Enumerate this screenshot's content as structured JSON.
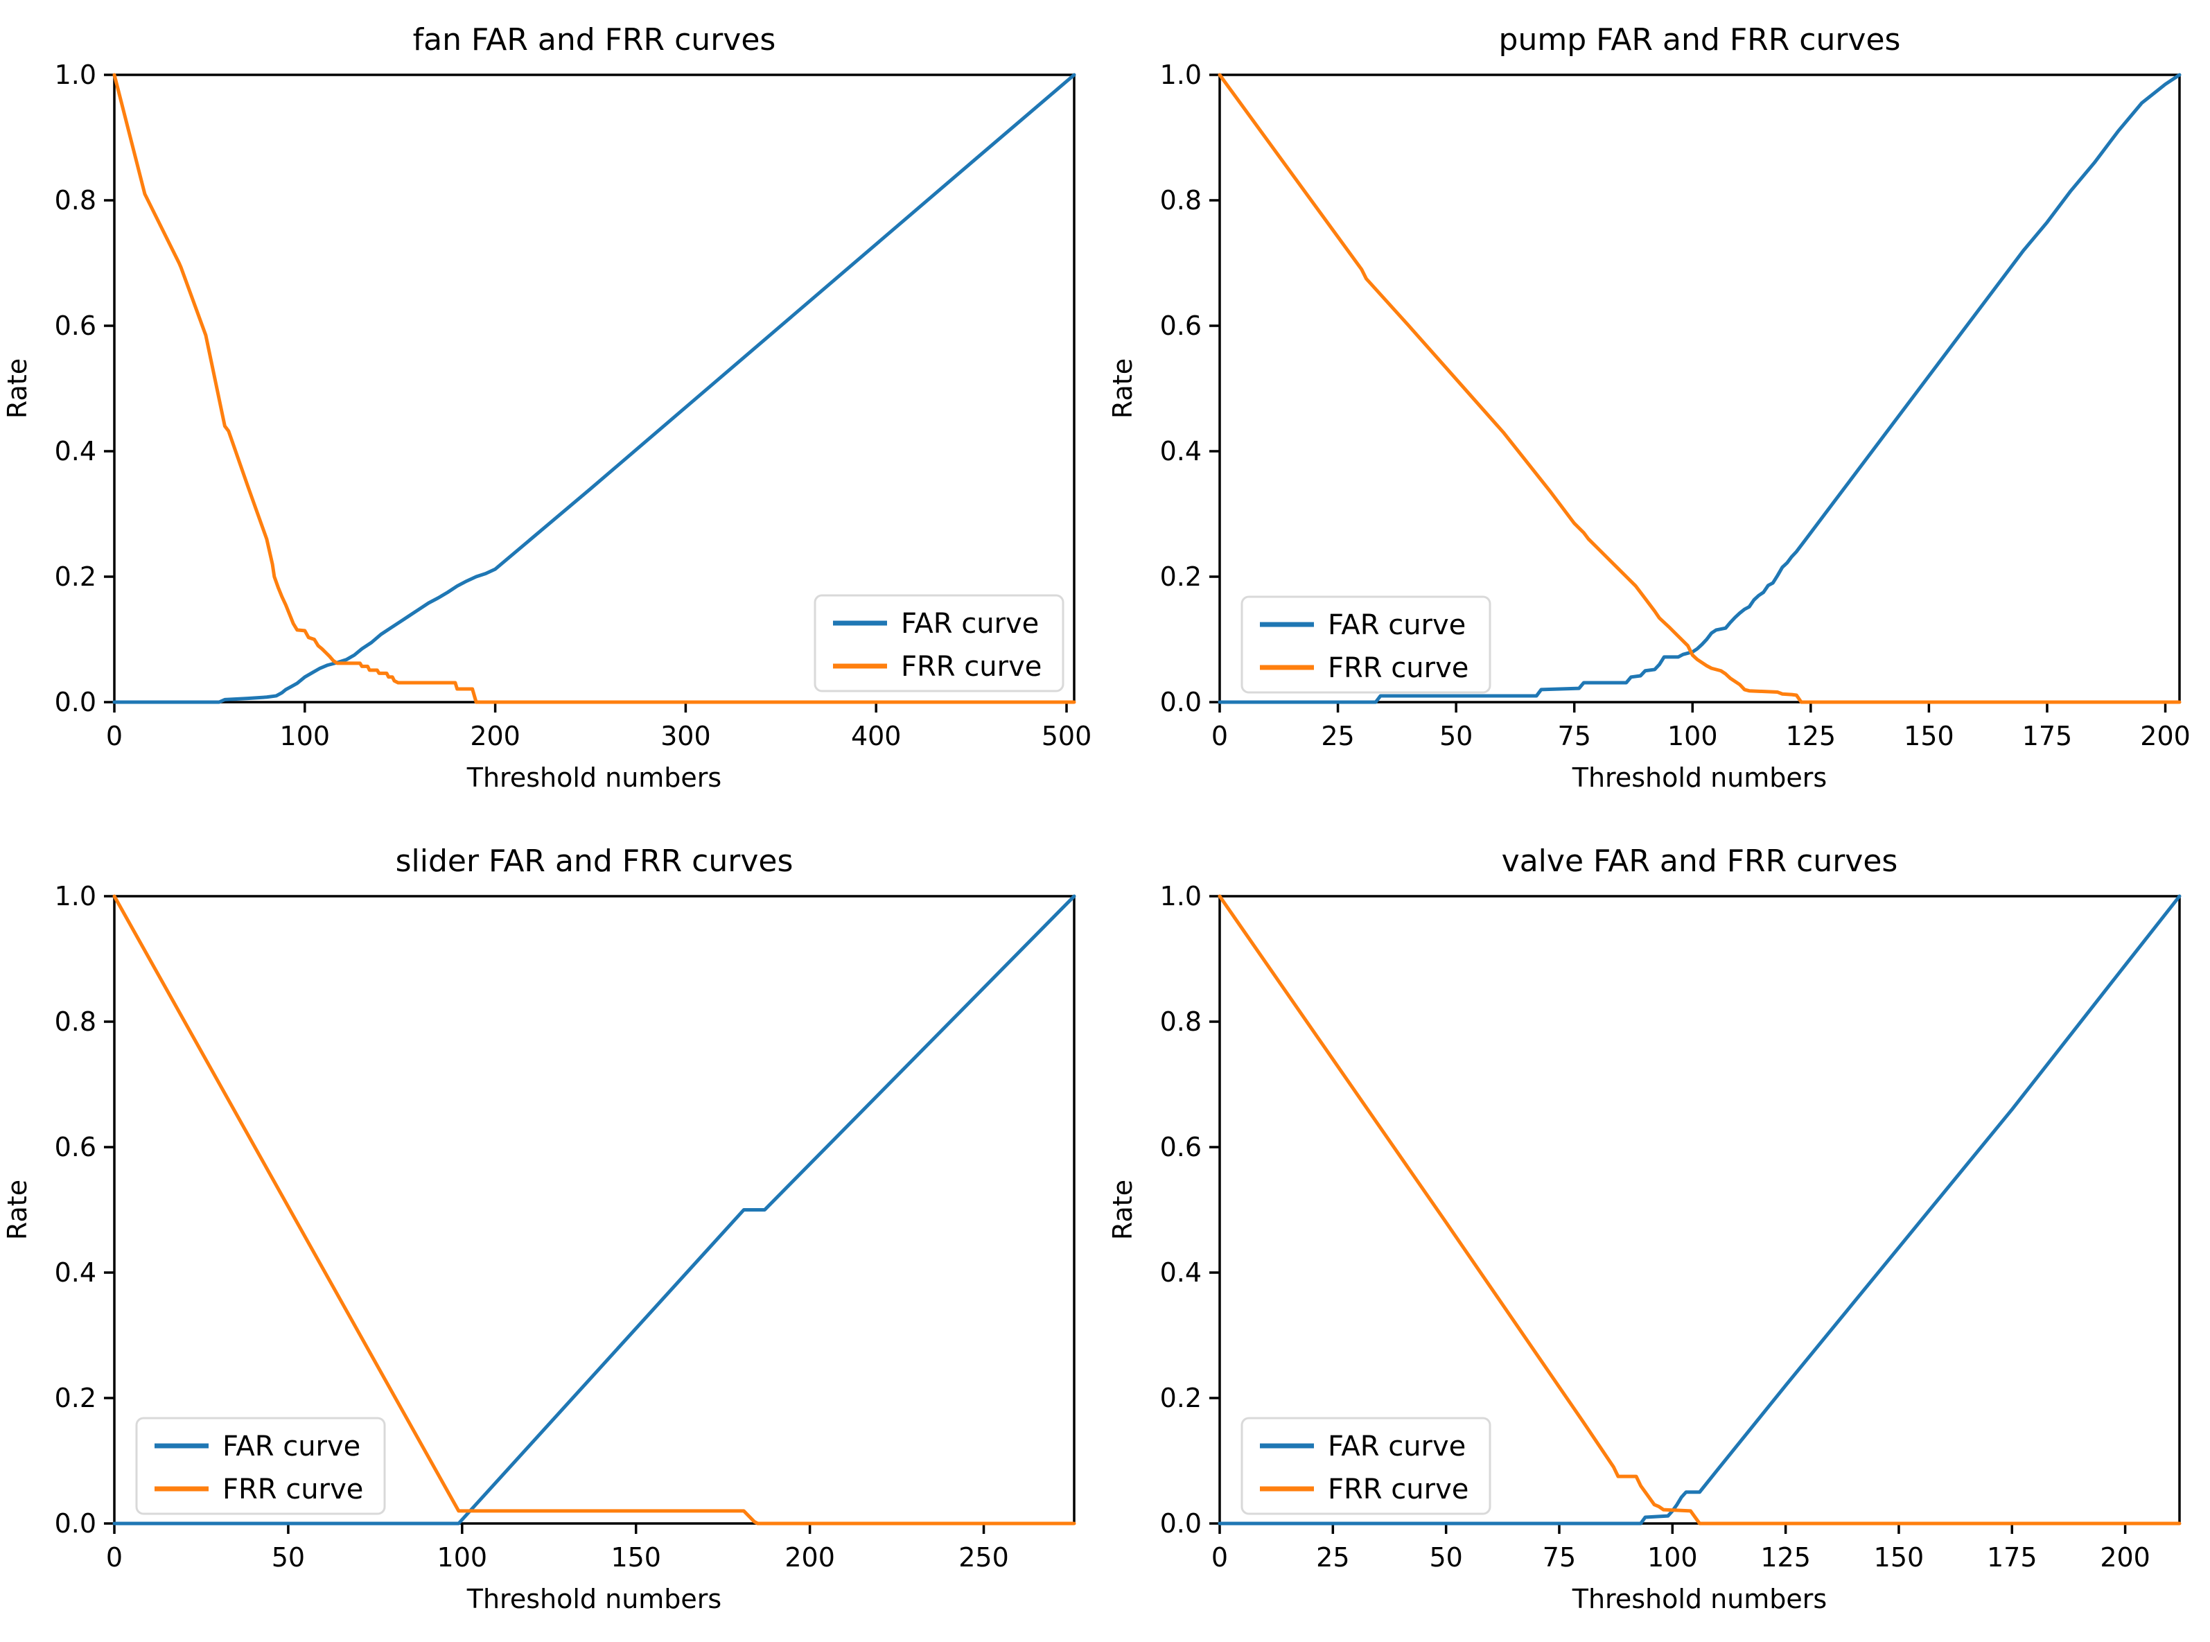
{
  "figure": {
    "background": "#ffffff",
    "text_color": "#000000",
    "spine_color": "#000000"
  },
  "colors": {
    "far_curve": "#1f77b4",
    "frr_curve": "#ff7f0e",
    "legend_border": "#d9d9d9",
    "legend_background": "#ffffff"
  },
  "chart_data": [
    {
      "type": "line",
      "title": "fan FAR and FRR curves",
      "xlabel": "Threshold numbers",
      "ylabel": "Rate",
      "xlim": [
        0,
        504
      ],
      "ylim": [
        0,
        1.0
      ],
      "xticks": [
        0,
        100,
        200,
        300,
        400,
        500
      ],
      "yticks": [
        "0.0",
        "0.2",
        "0.4",
        "0.6",
        "0.8",
        "1.0"
      ],
      "grid": false,
      "legend_position": "lower right",
      "legend_entries": [
        "FAR curve",
        "FRR curve"
      ],
      "series": [
        {
          "name": "FAR curve",
          "color": "#1f77b4",
          "points": [
            [
              0,
              0
            ],
            [
              55,
              0
            ],
            [
              58,
              0.004
            ],
            [
              70,
              0.006
            ],
            [
              80,
              0.008
            ],
            [
              85,
              0.01
            ],
            [
              88,
              0.015
            ],
            [
              90,
              0.02
            ],
            [
              93,
              0.025
            ],
            [
              96,
              0.03
            ],
            [
              100,
              0.04
            ],
            [
              104,
              0.047
            ],
            [
              108,
              0.054
            ],
            [
              112,
              0.059
            ],
            [
              117,
              0.063
            ],
            [
              122,
              0.068
            ],
            [
              126,
              0.075
            ],
            [
              130,
              0.085
            ],
            [
              135,
              0.095
            ],
            [
              140,
              0.108
            ],
            [
              145,
              0.118
            ],
            [
              150,
              0.128
            ],
            [
              155,
              0.138
            ],
            [
              160,
              0.148
            ],
            [
              165,
              0.158
            ],
            [
              170,
              0.166
            ],
            [
              175,
              0.175
            ],
            [
              180,
              0.185
            ],
            [
              185,
              0.193
            ],
            [
              190,
              0.2
            ],
            [
              195,
              0.205
            ],
            [
              200,
              0.212
            ],
            [
              250,
              0.34
            ],
            [
              300,
              0.47
            ],
            [
              350,
              0.6
            ],
            [
              400,
              0.73
            ],
            [
              450,
              0.86
            ],
            [
              504,
              1.0
            ]
          ]
        },
        {
          "name": "FRR curve",
          "color": "#ff7f0e",
          "points": [
            [
              0,
              1.0
            ],
            [
              16,
              0.81
            ],
            [
              34,
              0.7
            ],
            [
              35,
              0.693
            ],
            [
              48,
              0.585
            ],
            [
              58,
              0.44
            ],
            [
              60,
              0.432
            ],
            [
              70,
              0.345
            ],
            [
              80,
              0.26
            ],
            [
              83,
              0.22
            ],
            [
              84,
              0.2
            ],
            [
              86,
              0.183
            ],
            [
              88,
              0.168
            ],
            [
              90,
              0.155
            ],
            [
              92,
              0.14
            ],
            [
              94,
              0.125
            ],
            [
              96,
              0.115
            ],
            [
              100,
              0.114
            ],
            [
              102,
              0.103
            ],
            [
              105,
              0.1
            ],
            [
              107,
              0.09
            ],
            [
              109,
              0.085
            ],
            [
              111,
              0.079
            ],
            [
              113,
              0.073
            ],
            [
              115,
              0.066
            ],
            [
              117,
              0.062
            ],
            [
              129,
              0.062
            ],
            [
              130,
              0.057
            ],
            [
              133,
              0.057
            ],
            [
              134,
              0.051
            ],
            [
              138,
              0.051
            ],
            [
              139,
              0.046
            ],
            [
              143,
              0.046
            ],
            [
              144,
              0.04
            ],
            [
              146,
              0.04
            ],
            [
              147,
              0.034
            ],
            [
              149,
              0.031
            ],
            [
              179,
              0.031
            ],
            [
              180,
              0.021
            ],
            [
              188,
              0.021
            ],
            [
              190,
              0
            ],
            [
              504,
              0
            ]
          ]
        }
      ]
    },
    {
      "type": "line",
      "title": "pump FAR and FRR curves",
      "xlabel": "Threshold numbers",
      "ylabel": "Rate",
      "xlim": [
        0,
        203
      ],
      "ylim": [
        0,
        1.0
      ],
      "xticks": [
        0,
        25,
        50,
        75,
        100,
        125,
        150,
        175,
        200
      ],
      "yticks": [
        "0.0",
        "0.2",
        "0.4",
        "0.6",
        "0.8",
        "1.0"
      ],
      "grid": false,
      "legend_position": "lower left",
      "legend_entries": [
        "FAR curve",
        "FRR curve"
      ],
      "series": [
        {
          "name": "FAR curve",
          "color": "#1f77b4",
          "points": [
            [
              0,
              0
            ],
            [
              33,
              0
            ],
            [
              34,
              0.01
            ],
            [
              67,
              0.01
            ],
            [
              68,
              0.02
            ],
            [
              76,
              0.022
            ],
            [
              77,
              0.031
            ],
            [
              86,
              0.031
            ],
            [
              87,
              0.04
            ],
            [
              89,
              0.042
            ],
            [
              90,
              0.05
            ],
            [
              92,
              0.052
            ],
            [
              93,
              0.06
            ],
            [
              94,
              0.072
            ],
            [
              97,
              0.072
            ],
            [
              98,
              0.076
            ],
            [
              100,
              0.08
            ],
            [
              101,
              0.085
            ],
            [
              102,
              0.092
            ],
            [
              103,
              0.1
            ],
            [
              104,
              0.11
            ],
            [
              105,
              0.115
            ],
            [
              107,
              0.118
            ],
            [
              108,
              0.127
            ],
            [
              109,
              0.135
            ],
            [
              110,
              0.142
            ],
            [
              111,
              0.148
            ],
            [
              112,
              0.152
            ],
            [
              113,
              0.163
            ],
            [
              114,
              0.17
            ],
            [
              115,
              0.175
            ],
            [
              116,
              0.186
            ],
            [
              117,
              0.19
            ],
            [
              118,
              0.202
            ],
            [
              119,
              0.215
            ],
            [
              120,
              0.222
            ],
            [
              121,
              0.232
            ],
            [
              122,
              0.24
            ],
            [
              124,
              0.26
            ],
            [
              126,
              0.28
            ],
            [
              128,
              0.3
            ],
            [
              130,
              0.32
            ],
            [
              135,
              0.37
            ],
            [
              140,
              0.42
            ],
            [
              145,
              0.47
            ],
            [
              150,
              0.52
            ],
            [
              155,
              0.57
            ],
            [
              160,
              0.62
            ],
            [
              165,
              0.67
            ],
            [
              170,
              0.72
            ],
            [
              175,
              0.765
            ],
            [
              180,
              0.815
            ],
            [
              185,
              0.86
            ],
            [
              190,
              0.91
            ],
            [
              195,
              0.955
            ],
            [
              200,
              0.985
            ],
            [
              203,
              1.0
            ]
          ]
        },
        {
          "name": "FRR curve",
          "color": "#ff7f0e",
          "points": [
            [
              0,
              1.0
            ],
            [
              30,
              0.69
            ],
            [
              31,
              0.675
            ],
            [
              40,
              0.6
            ],
            [
              50,
              0.515
            ],
            [
              60,
              0.43
            ],
            [
              70,
              0.335
            ],
            [
              75,
              0.285
            ],
            [
              77,
              0.27
            ],
            [
              78,
              0.26
            ],
            [
              80,
              0.245
            ],
            [
              82,
              0.23
            ],
            [
              84,
              0.215
            ],
            [
              86,
              0.2
            ],
            [
              88,
              0.185
            ],
            [
              90,
              0.165
            ],
            [
              92,
              0.145
            ],
            [
              93,
              0.134
            ],
            [
              95,
              0.12
            ],
            [
              97,
              0.105
            ],
            [
              99,
              0.09
            ],
            [
              100,
              0.075
            ],
            [
              101,
              0.068
            ],
            [
              103,
              0.058
            ],
            [
              104,
              0.054
            ],
            [
              106,
              0.05
            ],
            [
              107,
              0.045
            ],
            [
              108,
              0.038
            ],
            [
              110,
              0.028
            ],
            [
              111,
              0.02
            ],
            [
              112,
              0.018
            ],
            [
              118,
              0.016
            ],
            [
              119,
              0.013
            ],
            [
              121,
              0.012
            ],
            [
              122,
              0.011
            ],
            [
              123,
              0
            ],
            [
              203,
              0
            ]
          ]
        }
      ]
    },
    {
      "type": "line",
      "title": "slider FAR and FRR curves",
      "xlabel": "Threshold numbers",
      "ylabel": "Rate",
      "xlim": [
        0,
        276
      ],
      "ylim": [
        0,
        1.0
      ],
      "xticks": [
        0,
        50,
        100,
        150,
        200,
        250
      ],
      "yticks": [
        "0.0",
        "0.2",
        "0.4",
        "0.6",
        "0.8",
        "1.0"
      ],
      "grid": false,
      "legend_position": "lower left",
      "legend_entries": [
        "FAR curve",
        "FRR curve"
      ],
      "series": [
        {
          "name": "FAR curve",
          "color": "#1f77b4",
          "points": [
            [
              0,
              0
            ],
            [
              99,
              0
            ],
            [
              181,
              0.5
            ],
            [
              187,
              0.5
            ],
            [
              276,
              1.0
            ]
          ]
        },
        {
          "name": "FRR curve",
          "color": "#ff7f0e",
          "points": [
            [
              0,
              1.0
            ],
            [
              99,
              0.02
            ],
            [
              181,
              0.02
            ],
            [
              184,
              0.003
            ],
            [
              185,
              0
            ],
            [
              276,
              0
            ]
          ]
        }
      ]
    },
    {
      "type": "line",
      "title": "valve FAR and FRR curves",
      "xlabel": "Threshold numbers",
      "ylabel": "Rate",
      "xlim": [
        0,
        212
      ],
      "ylim": [
        0,
        1.0
      ],
      "xticks": [
        0,
        25,
        50,
        75,
        100,
        125,
        150,
        175,
        200
      ],
      "yticks": [
        "0.0",
        "0.2",
        "0.4",
        "0.6",
        "0.8",
        "1.0"
      ],
      "grid": false,
      "legend_position": "lower left",
      "legend_entries": [
        "FAR curve",
        "FRR curve"
      ],
      "series": [
        {
          "name": "FAR curve",
          "color": "#1f77b4",
          "points": [
            [
              0,
              0
            ],
            [
              93,
              0
            ],
            [
              94,
              0.01
            ],
            [
              99,
              0.012
            ],
            [
              100,
              0.02
            ],
            [
              101,
              0.03
            ],
            [
              102,
              0.042
            ],
            [
              103,
              0.05
            ],
            [
              106,
              0.05
            ],
            [
              110,
              0.086
            ],
            [
              125,
              0.22
            ],
            [
              150,
              0.44
            ],
            [
              175,
              0.66
            ],
            [
              200,
              0.89
            ],
            [
              212,
              1.0
            ]
          ]
        },
        {
          "name": "FRR curve",
          "color": "#ff7f0e",
          "points": [
            [
              0,
              1.0
            ],
            [
              25,
              0.74
            ],
            [
              50,
              0.48
            ],
            [
              70,
              0.27
            ],
            [
              80,
              0.165
            ],
            [
              87,
              0.09
            ],
            [
              88,
              0.075
            ],
            [
              92,
              0.075
            ],
            [
              93,
              0.06
            ],
            [
              94,
              0.05
            ],
            [
              95,
              0.04
            ],
            [
              96,
              0.03
            ],
            [
              97,
              0.027
            ],
            [
              98,
              0.022
            ],
            [
              104,
              0.02
            ],
            [
              105,
              0.01
            ],
            [
              106,
              0
            ],
            [
              212,
              0
            ]
          ]
        }
      ]
    }
  ]
}
